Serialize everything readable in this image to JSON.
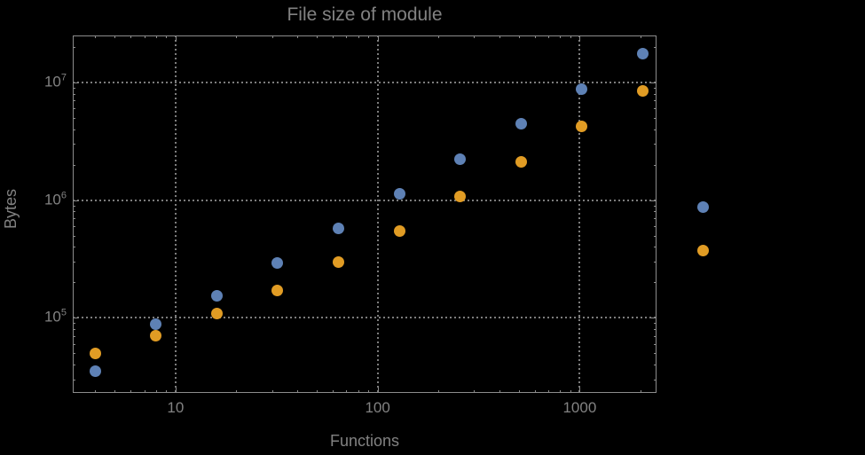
{
  "chart_data": {
    "type": "scatter",
    "title": "File size of module",
    "xlabel": "Functions",
    "ylabel": "Bytes",
    "x_scale": "log",
    "y_scale": "log",
    "xlim": [
      3.1,
      2400
    ],
    "ylim": [
      23000,
      25000000
    ],
    "grid": "dotted gridlines at decade majors",
    "legend": "none",
    "x": [
      4,
      8,
      16,
      32,
      64,
      128,
      256,
      512,
      1024,
      2048,
      4096
    ],
    "series": [
      {
        "name": "blue",
        "color": "#5E81B5",
        "values": [
          35000,
          88000,
          155000,
          290000,
          570000,
          1130000,
          2230000,
          4430000,
          8700000,
          17600000,
          870000
        ]
      },
      {
        "name": "orange",
        "color": "#E19C24",
        "values": [
          50000,
          71000,
          108000,
          172000,
          295000,
          545000,
          1070000,
          2120000,
          4250000,
          8500000,
          370000
        ]
      }
    ],
    "x_major_ticks": [
      {
        "value": 10,
        "label": "10"
      },
      {
        "value": 100,
        "label": "100"
      },
      {
        "value": 1000,
        "label": "1000"
      }
    ],
    "x_minor_ticks": [
      4,
      5,
      6,
      7,
      8,
      9,
      20,
      30,
      40,
      50,
      60,
      70,
      80,
      90,
      200,
      300,
      400,
      500,
      600,
      700,
      800,
      900,
      2000
    ],
    "y_major_ticks": [
      {
        "value": 100000,
        "base": "10",
        "exp": "5"
      },
      {
        "value": 1000000,
        "base": "10",
        "exp": "6"
      },
      {
        "value": 10000000,
        "base": "10",
        "exp": "7"
      }
    ],
    "y_minor_ticks": [
      30000,
      40000,
      50000,
      60000,
      70000,
      80000,
      90000,
      200000,
      300000,
      400000,
      500000,
      600000,
      700000,
      800000,
      900000,
      2000000,
      3000000,
      4000000,
      5000000,
      6000000,
      7000000,
      8000000,
      9000000,
      20000000
    ],
    "colors": {
      "background": "#000000",
      "frame": "#8c8c8c",
      "grid": "#7d7d7d",
      "text": "#828282"
    },
    "notes": "two points at x=4096 are drawn outside the right edge of the plot frame"
  }
}
